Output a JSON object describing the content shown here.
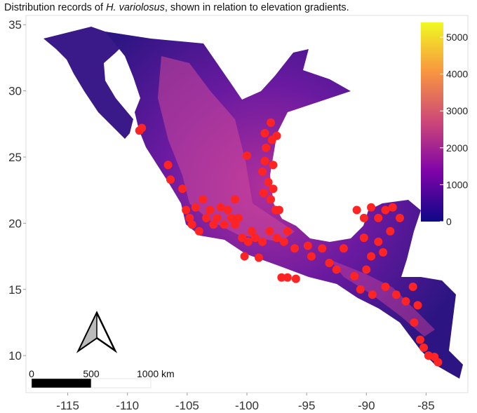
{
  "chart_data": {
    "type": "scatter",
    "title": [
      "Distribution records of ",
      "H. variolosus",
      ", shown in relation to elevation gradients."
    ],
    "xlim": [
      -118.5,
      -81.5
    ],
    "ylim": [
      7.2,
      35.7
    ],
    "xticks": [
      -115,
      -110,
      -105,
      -100,
      -95,
      -90,
      -85
    ],
    "yticks": [
      10,
      15,
      20,
      25,
      30,
      35
    ],
    "color": "#ff2424",
    "x": [
      -108.8,
      -109.0,
      -106.6,
      -106.4,
      -105.4,
      -105.1,
      -104.8,
      -104.6,
      -104.3,
      -104.0,
      -103.7,
      -103.4,
      -103.1,
      -102.8,
      -102.5,
      -102.2,
      -101.9,
      -101.6,
      -101.3,
      -101.0,
      -100.7,
      -100.4,
      -99.9,
      -99.6,
      -99.3,
      -98.7,
      -98.1,
      -97.5,
      -96.9,
      -96.6,
      -96.0,
      -97.1,
      -96.6,
      -95.9,
      -99.0,
      -100.2,
      -98.0,
      -98.5,
      -97.9,
      -97.5,
      -98.4,
      -98.5,
      -97.8,
      -98.7,
      -98.2,
      -98.6,
      -97.8,
      -98.0,
      -97.6,
      -100.0,
      -101.0,
      -97.3,
      -94.9,
      -94.6,
      -93.7,
      -93.1,
      -92.5,
      -91.9,
      -90.8,
      -90.2,
      -89.6,
      -89.0,
      -88.4,
      -87.8,
      -87.2,
      -88.0,
      -89.0,
      -90.2,
      -89.6,
      -88.6,
      -90.0,
      -91.0,
      -90.5,
      -89.5,
      -88.4,
      -87.5,
      -86.7,
      -86.1,
      -85.7,
      -86.0,
      -85.5,
      -85.2,
      -84.8,
      -84.3,
      -84.0
    ],
    "y": [
      27.2,
      27.0,
      24.4,
      23.3,
      22.6,
      21.0,
      20.4,
      19.9,
      21.2,
      19.4,
      21.8,
      20.4,
      21.0,
      19.9,
      20.4,
      21.2,
      19.9,
      21.0,
      20.4,
      19.9,
      20.4,
      18.9,
      18.6,
      19.4,
      18.9,
      18.6,
      19.4,
      18.9,
      18.6,
      19.4,
      18.1,
      15.9,
      15.9,
      15.8,
      17.4,
      17.5,
      27.6,
      26.8,
      26.3,
      26.6,
      25.7,
      24.7,
      24.4,
      23.9,
      23.1,
      22.3,
      22.6,
      21.8,
      21.0,
      25.1,
      21.8,
      21.0,
      18.3,
      17.5,
      18.1,
      17.0,
      16.5,
      18.1,
      21.0,
      20.4,
      21.2,
      20.4,
      21.0,
      21.2,
      20.4,
      19.4,
      18.6,
      18.9,
      17.5,
      17.8,
      16.5,
      16.0,
      15.0,
      14.6,
      15.2,
      14.6,
      14.1,
      15.2,
      13.8,
      12.5,
      11.2,
      10.6,
      10.0,
      9.9,
      9.5
    ],
    "colorbar": {
      "lim": [
        0,
        5400
      ],
      "ticks": [
        0,
        1000,
        2000,
        3000,
        4000,
        5000
      ],
      "colors": [
        "#0d0887",
        "#7e03a8",
        "#cc4778",
        "#f89540",
        "#f0f921"
      ]
    },
    "scale_bar": {
      "ticks": [
        0,
        500,
        {
          "value": 1000,
          "label": "1000 km"
        }
      ]
    }
  }
}
